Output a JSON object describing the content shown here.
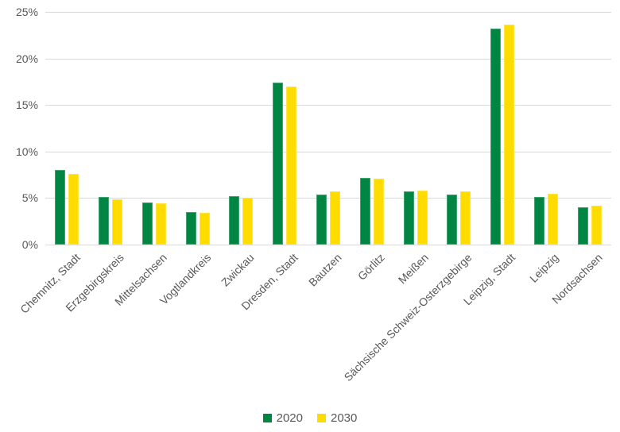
{
  "chart_data": {
    "type": "bar",
    "title": "",
    "categories": [
      "Chemnitz, Stadt",
      "Erzgebirgskreis",
      "Mittelsachsen",
      "Vogtlandkreis",
      "Zwickau",
      "Dresden, Stadt",
      "Bautzen",
      "Görlitz",
      "Meißen",
      "Sächsische Schweiz-Osterzgebirge",
      "Leipzig, Stadt",
      "Leipzig",
      "Nordsachsen"
    ],
    "series": [
      {
        "name": "2020",
        "color": "#008542",
        "values": [
          8.0,
          5.1,
          4.5,
          3.5,
          5.2,
          17.4,
          5.4,
          7.2,
          5.7,
          5.4,
          23.2,
          5.1,
          4.0
        ]
      },
      {
        "name": "2030",
        "color": "#FFDC00",
        "values": [
          7.6,
          4.9,
          4.4,
          3.4,
          5.0,
          17.0,
          5.7,
          7.1,
          5.8,
          5.7,
          23.6,
          5.5,
          4.2
        ]
      }
    ],
    "y_axis": {
      "min": 0,
      "max": 25,
      "step": 5,
      "tick_labels": [
        "0%",
        "5%",
        "10%",
        "15%",
        "20%",
        "25%"
      ]
    },
    "x_label_rotation_deg": 45,
    "grid": true,
    "legend_position": "bottom",
    "style": {
      "grid_color": "#dadada",
      "text_color": "#595959",
      "background": "#ffffff"
    }
  }
}
